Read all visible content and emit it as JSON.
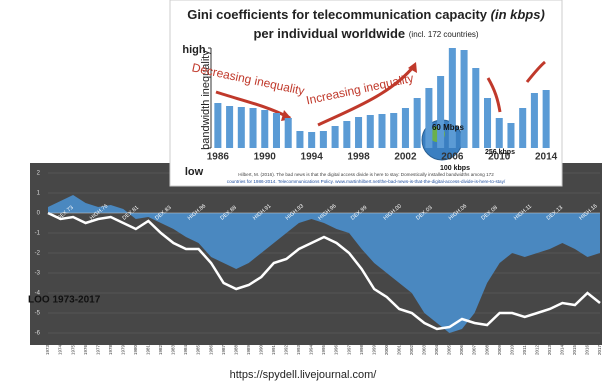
{
  "chart_data": [
    {
      "type": "bar",
      "title": {
        "main": "Gini coefficients for telecommunication capacity",
        "unit": "(in kbps)",
        "line2": "per individual worldwide",
        "note": "(incl. 172 countries)"
      },
      "y_label": "bandwidth inequality",
      "categories": [
        "1986",
        null,
        null,
        null,
        "1990",
        null,
        null,
        null,
        "1994",
        null,
        null,
        null,
        "1998",
        null,
        null,
        null,
        "2002",
        null,
        null,
        null,
        "2006",
        null,
        null,
        null,
        "2010",
        null,
        null,
        null,
        "2014"
      ],
      "values": [
        0.45,
        0.42,
        0.41,
        0.4,
        0.38,
        0.35,
        0.3,
        0.17,
        0.16,
        0.17,
        0.22,
        0.27,
        0.31,
        0.33,
        0.34,
        0.35,
        0.4,
        0.5,
        0.6,
        0.72,
        1.0,
        0.98,
        0.8,
        0.5,
        0.3,
        0.25,
        0.4,
        0.55,
        0.58
      ],
      "color": "#5b9bd5",
      "ylim": [
        0,
        1.03
      ],
      "yticks": [
        {
          "value": 0,
          "label": "low"
        },
        {
          "value": 1,
          "label": "high"
        }
      ],
      "annotations": [
        "Decreasing inequality",
        "Increasing inequality",
        "60 Mbps",
        "256 kbps",
        "100 kbps"
      ],
      "citation": [
        "Hilbert, M. (2016). The bad news is that the digital access divide is here to stay: Domestically installed bandwidths among 172",
        "countries for 1986-2014. Telecommunications Policy. www.martinhilbert.net/the-bad-news-is-that-the-digital-access-divide-is-here-to-stay/"
      ]
    },
    {
      "type": "area-line",
      "label": "LOO 1973-2017",
      "categories": [
        "1973",
        "1974",
        "1975",
        "1976",
        "1977",
        "1978",
        "1979",
        "1980",
        "1981",
        "1982",
        "1983",
        "1984",
        "1985",
        "1986",
        "1987",
        "1988",
        "1989",
        "1990",
        "1991",
        "1992",
        "1993",
        "1994",
        "1995",
        "1996",
        "1997",
        "1998",
        "1999",
        "2000",
        "2001",
        "2002",
        "2003",
        "2004",
        "2005",
        "2006",
        "2007",
        "2008",
        "2009",
        "2010",
        "2011",
        "2012",
        "2013",
        "2014",
        "2015",
        "2016",
        "2017"
      ],
      "series": [
        {
          "style": "area",
          "color": "#4a88c0",
          "values": [
            0.3,
            0.6,
            0.9,
            0.5,
            0.3,
            0.4,
            0.2,
            -0.3,
            -0.2,
            -0.5,
            -0.8,
            -1.2,
            -1.5,
            -2.2,
            -2.5,
            -2.8,
            -2.5,
            -2.0,
            -1.5,
            -1.0,
            -0.5,
            -0.3,
            -0.5,
            -0.8,
            -1.0,
            -1.8,
            -2.5,
            -3.0,
            -3.5,
            -4.0,
            -5.0,
            -5.5,
            -6.0,
            -5.8,
            -5.0,
            -3.5,
            -2.5,
            -2.0,
            -2.2,
            -2.0,
            -1.8,
            -1.5,
            -1.8,
            -2.2,
            -2.0
          ]
        },
        {
          "style": "line",
          "color": "#ffffff",
          "values": [
            0.0,
            -0.3,
            -0.2,
            -0.5,
            -0.3,
            -0.2,
            -0.5,
            -0.8,
            -0.4,
            -1.0,
            -1.5,
            -1.8,
            -1.8,
            -2.5,
            -3.5,
            -3.8,
            -3.6,
            -3.2,
            -2.5,
            -2.3,
            -1.8,
            -1.5,
            -1.2,
            -1.5,
            -2.0,
            -2.8,
            -3.8,
            -4.2,
            -4.8,
            -5.0,
            -5.5,
            -5.8,
            -5.7,
            -5.3,
            -5.5,
            -5.6,
            -5.0,
            -5.0,
            -5.2,
            -5.0,
            -4.8,
            -4.5,
            -4.6,
            -4.0,
            -4.5
          ]
        }
      ],
      "annotations": [
        "DEX.73",
        "HIGH.76",
        "DEX.81",
        "DEX.83",
        "HIGH.86",
        "DEX.88",
        "HIGH.91",
        "HIGH.93",
        "HIGH.96",
        "DEX.99",
        "HIGH.00",
        "DEX.03",
        "HIGH.06",
        "DEX.08",
        "HIGH.11",
        "DEX.13",
        "HIGH.16"
      ],
      "ylim": [
        -6.5,
        2.5
      ],
      "yticks": [
        2,
        1,
        0,
        -1,
        -2,
        -3,
        -4,
        -5,
        -6
      ],
      "grid": true
    }
  ],
  "footer": "https://spydell.livejournal.com/"
}
